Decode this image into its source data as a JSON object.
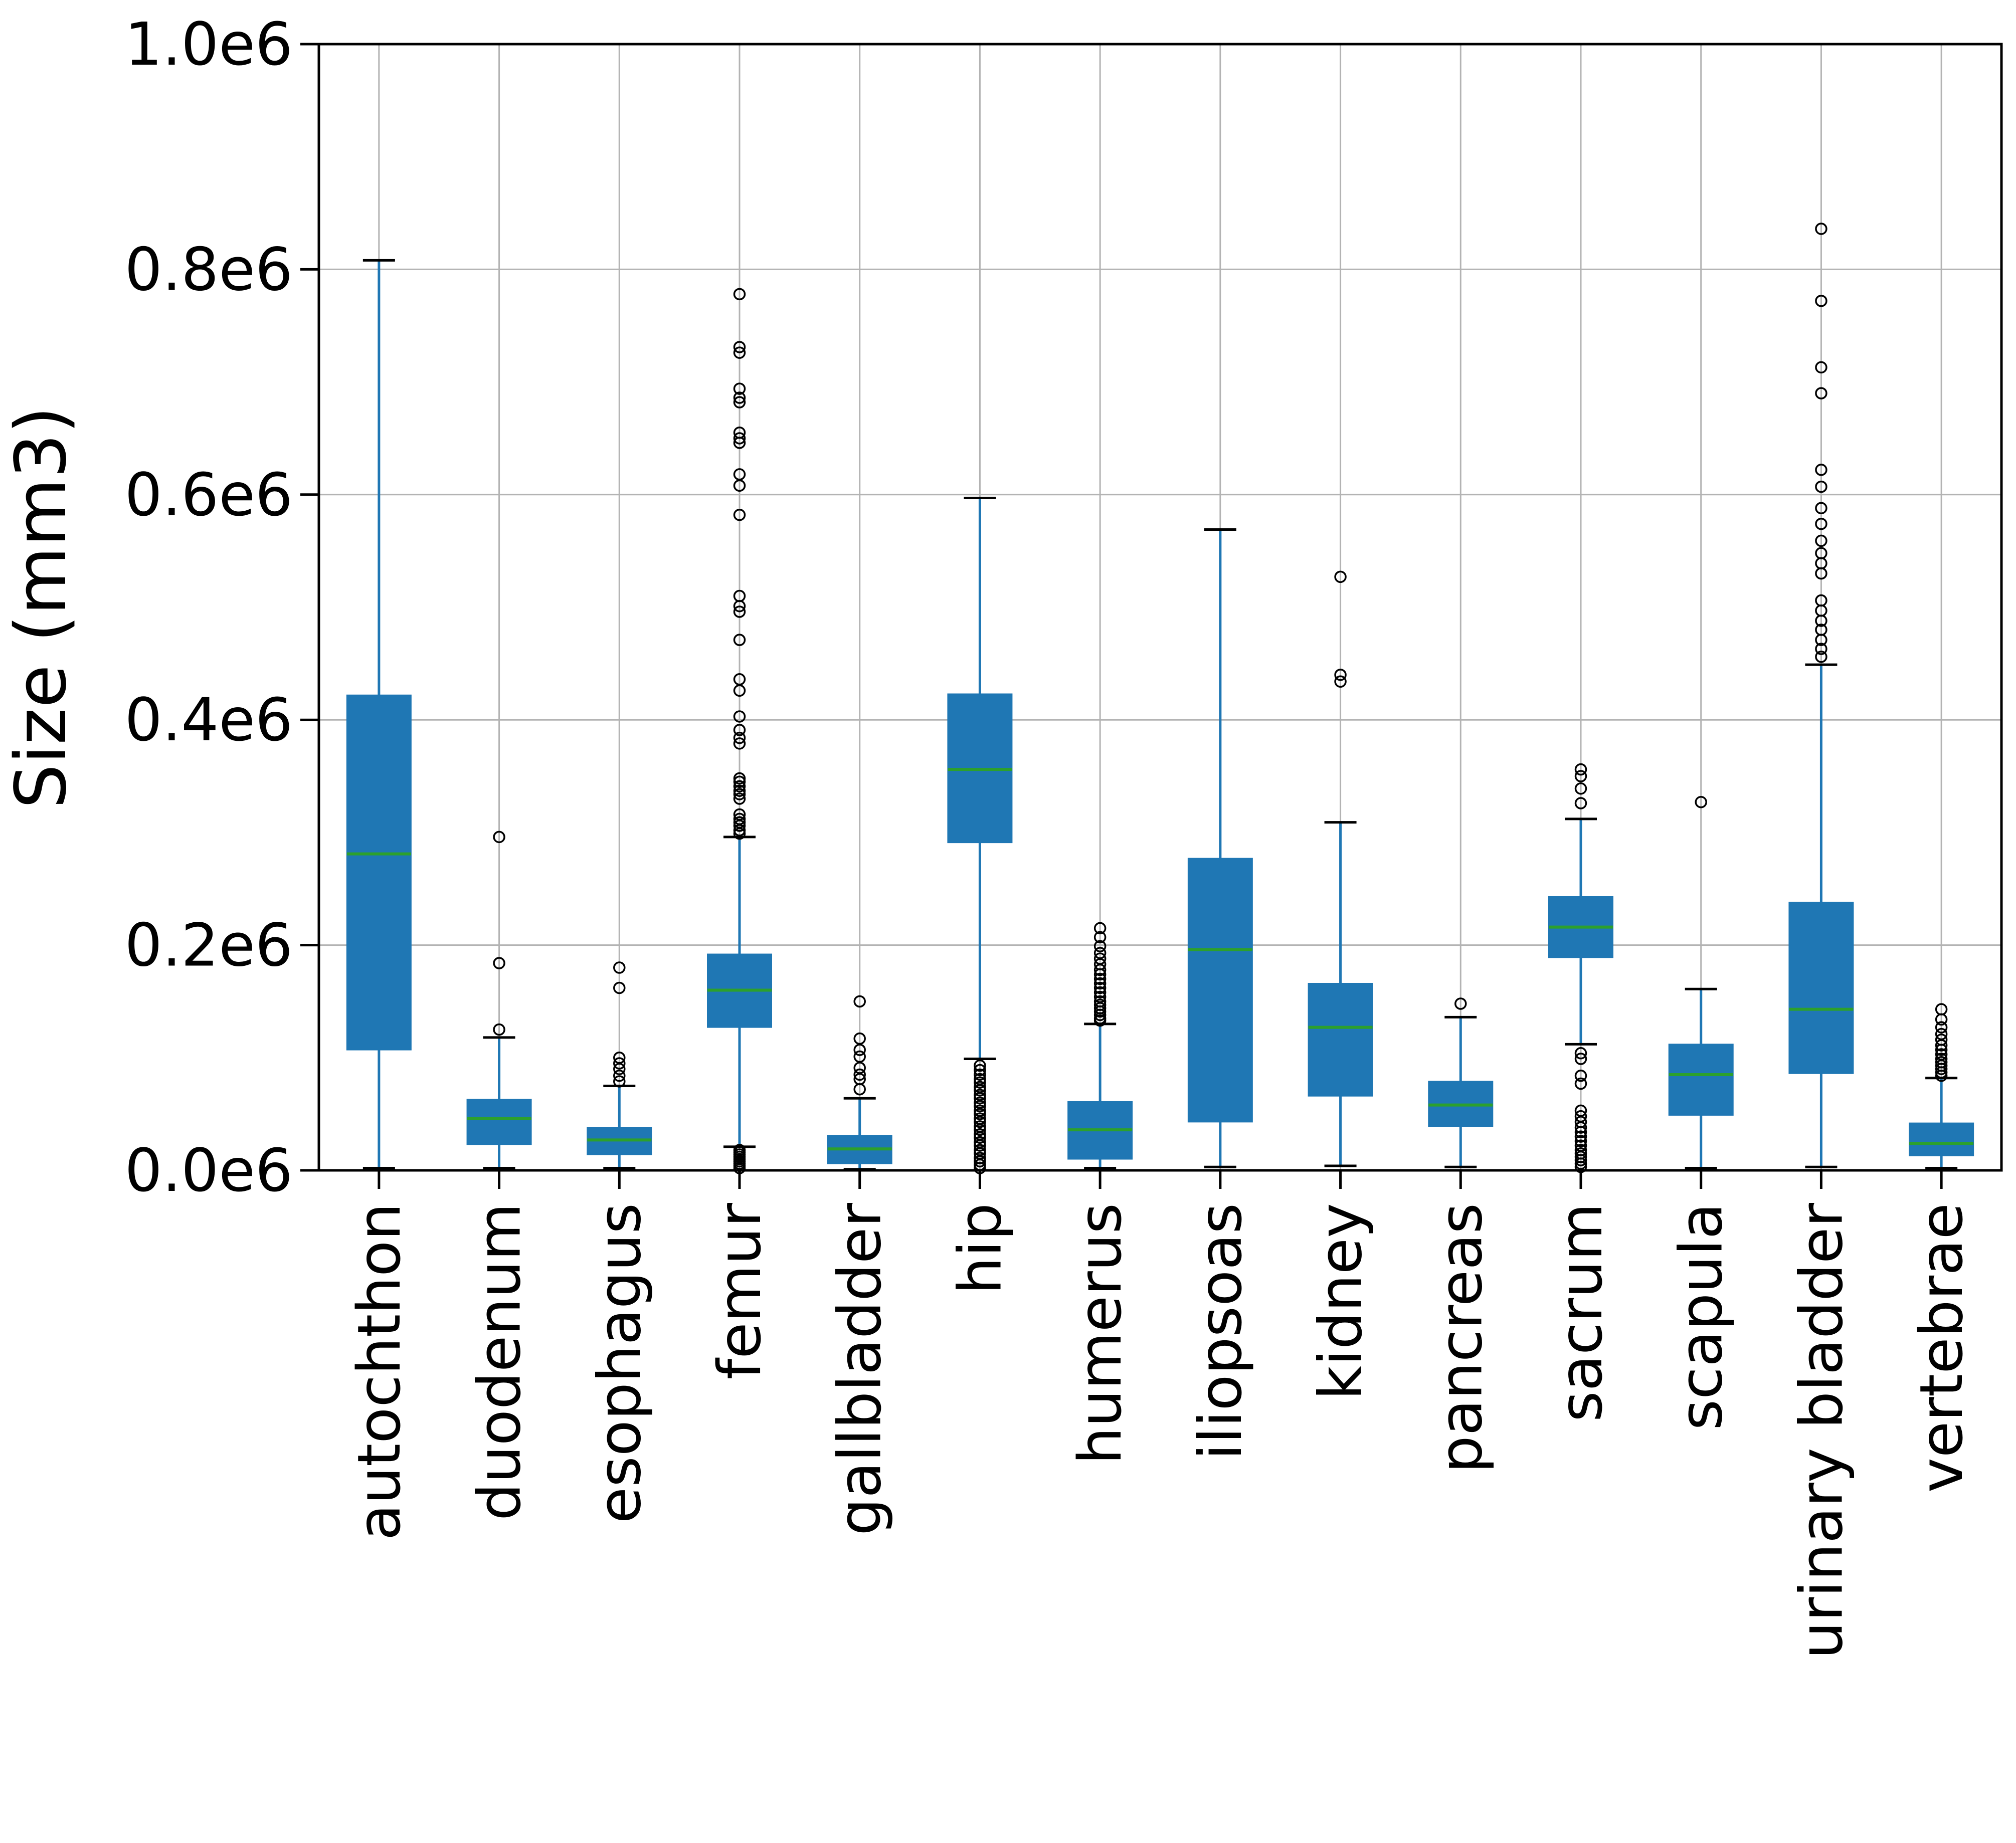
{
  "chart_data": {
    "type": "boxplot",
    "title": "",
    "xlabel": "",
    "ylabel": "Size (mm3)",
    "ylim": [
      0,
      1000000
    ],
    "grid": true,
    "legend": "none",
    "yticks": [
      {
        "value": 0,
        "label": "0.0e6"
      },
      {
        "value": 200000,
        "label": "0.2e6"
      },
      {
        "value": 400000,
        "label": "0.4e6"
      },
      {
        "value": 600000,
        "label": "0.6e6"
      },
      {
        "value": 800000,
        "label": "0.8e6"
      },
      {
        "value": 1000000,
        "label": "1.0e6"
      }
    ],
    "categories": [
      "autochthon",
      "duodenum",
      "esophagus",
      "femur",
      "gallbladder",
      "hip",
      "humerus",
      "iliopsoas",
      "kidney",
      "pancreas",
      "sacrum",
      "scapula",
      "urinary bladder",
      "vertebrae"
    ],
    "boxes": [
      {
        "label": "autochthon",
        "whislo": 2000,
        "q1": 107000,
        "med": 281000,
        "q3": 422000,
        "whishi": 808000,
        "fliers": []
      },
      {
        "label": "duodenum",
        "whislo": 2000,
        "q1": 23000,
        "med": 46000,
        "q3": 63000,
        "whishi": 118000,
        "fliers": [
          296000,
          184000,
          125000
        ]
      },
      {
        "label": "esophagus",
        "whislo": 2000,
        "q1": 14000,
        "med": 27000,
        "q3": 38000,
        "whishi": 75000,
        "fliers": [
          180000,
          162000,
          100000,
          95000,
          90000,
          84000,
          79000
        ]
      },
      {
        "label": "femur",
        "whislo": 21000,
        "q1": 127000,
        "med": 160000,
        "q3": 192000,
        "whishi": 296000,
        "fliers": [
          778000,
          731000,
          726000,
          694000,
          686000,
          682000,
          655000,
          650000,
          646000,
          618000,
          608000,
          582000,
          510000,
          501000,
          496000,
          471000,
          436000,
          426000,
          403000,
          391000,
          384000,
          379000,
          348000,
          345000,
          341000,
          337000,
          334000,
          330000,
          316000,
          312000,
          309000,
          306000,
          302000,
          299000,
          18000,
          16000,
          14000,
          12000,
          10000,
          8000,
          6000,
          4000,
          2000
        ]
      },
      {
        "label": "gallbladder",
        "whislo": 1000,
        "q1": 6000,
        "med": 19000,
        "q3": 31000,
        "whishi": 64000,
        "fliers": [
          150000,
          117000,
          107000,
          101000,
          91000,
          85000,
          81000,
          72000
        ]
      },
      {
        "label": "hip",
        "whislo": 99000,
        "q1": 291000,
        "med": 356000,
        "q3": 423000,
        "whishi": 597000,
        "fliers": [
          93000,
          89000,
          85000,
          81000,
          78000,
          74000,
          71000,
          67000,
          64000,
          60000,
          57000,
          53000,
          50000,
          46000,
          43000,
          39000,
          36000,
          32000,
          29000,
          25000,
          22000,
          18000,
          15000,
          11000,
          8000,
          5000,
          2000
        ]
      },
      {
        "label": "humerus",
        "whislo": 2000,
        "q1": 10000,
        "med": 36000,
        "q3": 61000,
        "whishi": 130000,
        "fliers": [
          215000,
          207000,
          199000,
          193000,
          188000,
          183000,
          178000,
          174000,
          170000,
          166000,
          162000,
          158000,
          154000,
          150000,
          147000,
          144000,
          141000,
          138000,
          135000,
          133000
        ]
      },
      {
        "label": "iliopsoas",
        "whislo": 3000,
        "q1": 43000,
        "med": 196000,
        "q3": 277000,
        "whishi": 569000,
        "fliers": []
      },
      {
        "label": "kidney",
        "whislo": 4000,
        "q1": 66000,
        "med": 127000,
        "q3": 166000,
        "whishi": 309000,
        "fliers": [
          527000,
          440000,
          434000
        ]
      },
      {
        "label": "pancreas",
        "whislo": 3000,
        "q1": 39000,
        "med": 58000,
        "q3": 79000,
        "whishi": 136000,
        "fliers": [
          148000
        ]
      },
      {
        "label": "sacrum",
        "whislo": 112000,
        "q1": 189000,
        "med": 216000,
        "q3": 243000,
        "whishi": 312000,
        "fliers": [
          356000,
          350000,
          339000,
          326000,
          104000,
          99000,
          84000,
          77000,
          53000,
          48000,
          43000,
          38000,
          34000,
          30000,
          26000,
          22000,
          18000,
          15000,
          12000,
          9000,
          6000,
          3000
        ]
      },
      {
        "label": "scapula",
        "whislo": 2000,
        "q1": 49000,
        "med": 85000,
        "q3": 112000,
        "whishi": 161000,
        "fliers": [
          327000
        ]
      },
      {
        "label": "urinary bladder",
        "whislo": 3000,
        "q1": 86000,
        "med": 143000,
        "q3": 238000,
        "whishi": 449000,
        "fliers": [
          836000,
          772000,
          713000,
          690000,
          622000,
          607000,
          588000,
          574000,
          559000,
          548000,
          539000,
          530000,
          506000,
          497000,
          488000,
          480000,
          471000,
          463000,
          456000
        ]
      },
      {
        "label": "vertebrae",
        "whislo": 2000,
        "q1": 13000,
        "med": 24000,
        "q3": 42000,
        "whishi": 82000,
        "fliers": [
          143000,
          134000,
          127000,
          121000,
          116000,
          111000,
          107000,
          103000,
          99000,
          96000,
          93000,
          90000,
          87000,
          84000
        ]
      }
    ],
    "colors": {
      "box_fill": "#1f77b4",
      "median": "#2ca02c",
      "whisker": "#1f77b4",
      "cap": "#000000",
      "flier_stroke": "#000000",
      "gridline": "#b3b3b3",
      "spine": "#000000",
      "background": "#ffffff"
    }
  }
}
